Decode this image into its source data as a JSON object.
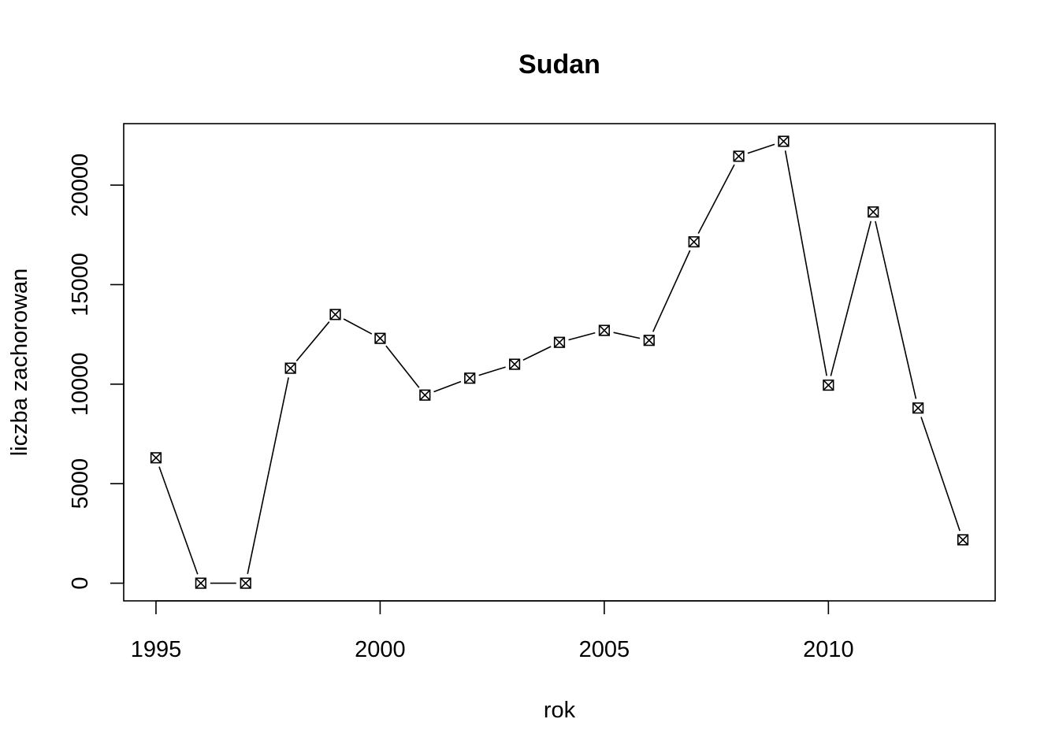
{
  "chart_data": {
    "type": "line",
    "title": "Sudan",
    "xlabel": "rok",
    "ylabel": "liczba zachorowan",
    "x": [
      1995,
      1996,
      1997,
      1998,
      1999,
      2000,
      2001,
      2002,
      2003,
      2004,
      2005,
      2006,
      2007,
      2008,
      2009,
      2010,
      2011,
      2012,
      2013
    ],
    "series": [
      {
        "values": [
          6300,
          0,
          0,
          10800,
          13500,
          12300,
          9450,
          10300,
          11000,
          12100,
          12700,
          12200,
          17150,
          21450,
          22200,
          9950,
          18650,
          8800,
          2180
        ],
        "marker": "boxed-x",
        "line_style": "solid",
        "color": "#000000"
      }
    ],
    "xlim": [
      1994.28,
      2013.72
    ],
    "ylim": [
      -888,
      23088
    ],
    "x_ticks": [
      1995,
      2000,
      2005,
      2010
    ],
    "x_tick_labels": [
      "1995",
      "2000",
      "2005",
      "2010"
    ],
    "y_ticks": [
      0,
      5000,
      10000,
      15000,
      20000
    ],
    "y_tick_labels": [
      "0",
      "5000",
      "10000",
      "15000",
      "20000"
    ],
    "grid": false,
    "legend": "none"
  }
}
